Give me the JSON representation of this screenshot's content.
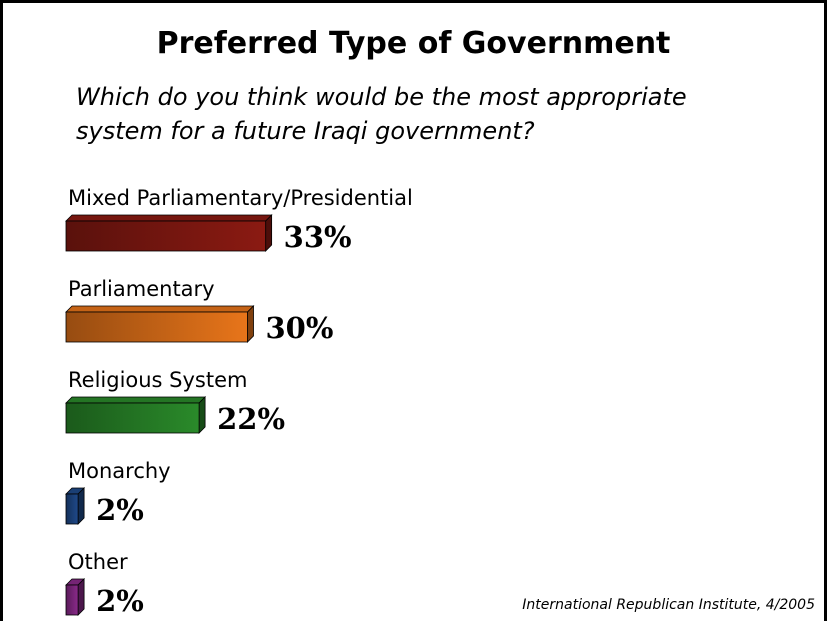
{
  "chart_data": {
    "type": "bar",
    "orientation": "horizontal",
    "title": "Preferred Type of Government",
    "subtitle_lines": [
      "Which do you think would be the most appropriate",
      "system for a future Iraqi government?"
    ],
    "categories": [
      "Mixed Parliamentary/Presidential",
      "Parliamentary",
      "Religious System",
      "Monarchy",
      "Other"
    ],
    "values": [
      33,
      30,
      22,
      2,
      2
    ],
    "value_labels": [
      "33%",
      "30%",
      "22%",
      "2%",
      "2%"
    ],
    "unit": "%",
    "colors": [
      "#8b1a12",
      "#e8751a",
      "#2a8a2a",
      "#1f4a8a",
      "#8a2a8a"
    ],
    "grid": false,
    "legend": "none",
    "source": "International Republican Institute, 4/2005"
  }
}
